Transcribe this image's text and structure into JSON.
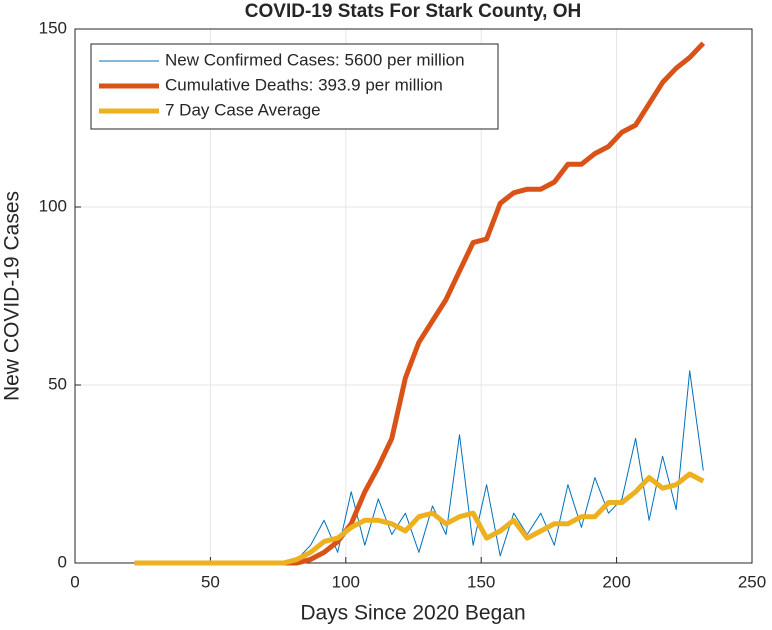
{
  "chart_data": {
    "type": "line",
    "title": "COVID-19 Stats For Stark County, OH",
    "x_label": "Days Since 2020 Began",
    "y_label": "New COVID-19 Cases",
    "x": [
      22,
      27,
      32,
      37,
      42,
      47,
      52,
      57,
      62,
      67,
      72,
      77,
      82,
      87,
      92,
      97,
      102,
      107,
      112,
      117,
      122,
      127,
      132,
      137,
      142,
      147,
      152,
      157,
      162,
      167,
      172,
      177,
      182,
      187,
      192,
      197,
      202,
      207,
      212,
      217,
      222,
      227,
      232
    ],
    "series": [
      {
        "name": "New Confirmed Cases: 5600 per million",
        "color": "#0072bd",
        "width": 1,
        "values": [
          0,
          0,
          0,
          0,
          0,
          0,
          0,
          0,
          0,
          0,
          0,
          0,
          1,
          5,
          12,
          3,
          20,
          5,
          18,
          8,
          14,
          3,
          16,
          8,
          36,
          5,
          22,
          2,
          14,
          8,
          14,
          5,
          22,
          10,
          24,
          14,
          18,
          35,
          12,
          30,
          15,
          54,
          26
        ]
      },
      {
        "name": "Cumulative Deaths: 393.9 per million",
        "color": "#d95319",
        "width": 5,
        "values": [
          0,
          0,
          0,
          0,
          0,
          0,
          0,
          0,
          0,
          0,
          0,
          0,
          0,
          1,
          3,
          6,
          11,
          20,
          27,
          35,
          52,
          62,
          68,
          74,
          82,
          90,
          91,
          101,
          104,
          105,
          105,
          107,
          112,
          112,
          115,
          117,
          121,
          123,
          129,
          135,
          139,
          142,
          146
        ]
      },
      {
        "name": "7 Day Case Average",
        "color": "#edb120",
        "width": 5,
        "values": [
          0,
          0,
          0,
          0,
          0,
          0,
          0,
          0,
          0,
          0,
          0,
          0,
          1,
          3,
          6,
          7,
          10,
          12,
          12,
          11,
          9,
          13,
          14,
          11,
          13,
          14,
          7,
          9,
          12,
          7,
          9,
          11,
          11,
          13,
          13,
          17,
          17,
          20,
          24,
          21,
          22,
          25,
          23
        ]
      }
    ],
    "xlim": [
      0,
      250
    ],
    "xticks": [
      0,
      50,
      100,
      150,
      200,
      250
    ],
    "ylim": [
      0,
      150
    ],
    "yticks": [
      0,
      50,
      100,
      150
    ],
    "grid": true,
    "legend": "upper-left"
  }
}
